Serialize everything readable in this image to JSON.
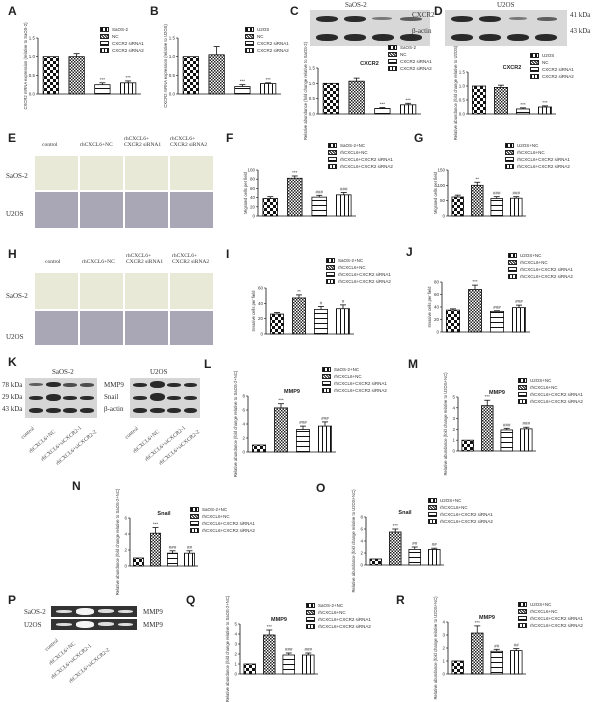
{
  "figure": {
    "panels": [
      "A",
      "B",
      "C",
      "D",
      "E",
      "F",
      "G",
      "H",
      "I",
      "J",
      "K",
      "L",
      "M",
      "N",
      "O",
      "P",
      "Q",
      "R"
    ]
  },
  "blots": {
    "C": {
      "title": "SaOS-2",
      "labels": [
        "CXCR2",
        "β-actin"
      ],
      "band_intensity": [
        [
          1,
          1,
          0.4,
          0.5
        ],
        [
          1,
          1,
          1,
          1
        ]
      ]
    },
    "D": {
      "title": "U2OS",
      "labels": [
        "41 kDa",
        "43 kDa"
      ],
      "band_intensity": [
        [
          1,
          1,
          0.4,
          0.5
        ],
        [
          1,
          1,
          1,
          1
        ]
      ]
    },
    "K": {
      "left": {
        "title": "SaOS-2",
        "labels": [
          "78 kDa",
          "29 kDa",
          "43 kDa"
        ]
      },
      "right": {
        "title": "U2OS",
        "labels": [
          "MMP9",
          "Snail",
          "β-actin"
        ]
      },
      "lanes": [
        "control",
        "rhCXCL6+NC",
        "rhCXCL6+siCXCR2-1",
        "rhCXCL6+siCXCR2-2"
      ]
    },
    "P": {
      "rows": [
        {
          "cell": "SaOS-2",
          "gene": "MMP9"
        },
        {
          "cell": "U2OS",
          "gene": "MMP9"
        }
      ],
      "lanes": [
        "control",
        "rhCXCL6+NC",
        "rhCXCL6+siCXCR2-1",
        "rhCXCL6+siCXCR2-2"
      ]
    }
  },
  "micrographs": {
    "E": {
      "columns": [
        "control",
        "rhCXCL6+NC",
        "rhCXCL6+\nCXCR2 siRNA1",
        "rhCXCL6+\nCXCR2 siRNA2"
      ],
      "rows": [
        "SaOS-2",
        "U2OS"
      ]
    },
    "H": {
      "columns": [
        "control",
        "rhCXCL6+NC",
        "rhCXCL6+\nCXCR2 siRNA1",
        "rhCXCL6+\nCXCR2 siRNA2"
      ],
      "rows": [
        "SaOS-2",
        "U2OS"
      ]
    }
  },
  "chart_data": [
    {
      "panel": "A",
      "type": "bar",
      "title": "",
      "ylabel": "CXCR2 mRNA expression (relative to SaOS-2)",
      "ylim": [
        0,
        1.5
      ],
      "yticks": [
        "0.0",
        "0.5",
        "1.0",
        "1.5"
      ],
      "categories": [
        "SaOS-2",
        "NC",
        "CXCR2 siRNA1",
        "CXCR2 siRNA2"
      ],
      "values": [
        1.0,
        1.0,
        0.25,
        0.3
      ],
      "errors": [
        0,
        0.08,
        0.05,
        0.05
      ],
      "sig": [
        "",
        "",
        "***",
        "***"
      ]
    },
    {
      "panel": "B",
      "type": "bar",
      "title": "",
      "ylabel": "CXCR2 mRNA expression (relative to U2OS)",
      "ylim": [
        0,
        1.5
      ],
      "yticks": [
        "0.0",
        "0.5",
        "1.0",
        "1.5"
      ],
      "categories": [
        "U2OS",
        "NC",
        "CXCR2 siRNA1",
        "CXCR2 siRNA2"
      ],
      "values": [
        1.0,
        1.05,
        0.2,
        0.28
      ],
      "errors": [
        0,
        0.22,
        0.05,
        0.02
      ],
      "sig": [
        "",
        "",
        "***",
        "***"
      ]
    },
    {
      "panel": "C",
      "type": "bar",
      "title": "CXCR2",
      "ylabel": "Relative abundance (fold change relative to SaOS-2)",
      "ylim": [
        0,
        1.5
      ],
      "yticks": [
        "0.0",
        "0.5",
        "1.0",
        "1.5"
      ],
      "categories": [
        "SaOS-2",
        "NC",
        "CXCR2 siRNA1",
        "CXCR2 siRNA2"
      ],
      "values": [
        1.0,
        1.07,
        0.18,
        0.3
      ],
      "errors": [
        0,
        0.1,
        0.03,
        0.05
      ],
      "sig": [
        "",
        "",
        "***",
        "***"
      ]
    },
    {
      "panel": "D",
      "type": "bar",
      "title": "CXCR2",
      "ylabel": "Relative abundance (fold change relative to U2OS)",
      "ylim": [
        0,
        1.5
      ],
      "yticks": [
        "0.0",
        "0.5",
        "1.0",
        "1.5"
      ],
      "categories": [
        "U2OS",
        "NC",
        "CXCR2 siRNA1",
        "CXCR2 siRNA2"
      ],
      "values": [
        1.0,
        0.95,
        0.18,
        0.25
      ],
      "errors": [
        0,
        0.08,
        0.04,
        0.04
      ],
      "sig": [
        "",
        "",
        "***",
        "***"
      ]
    },
    {
      "panel": "F",
      "type": "bar",
      "title": "",
      "ylabel": "Migrated cells per field",
      "ylim": [
        0,
        100
      ],
      "yticks": [
        "0",
        "20",
        "40",
        "60",
        "80",
        "100"
      ],
      "categories": [
        "SaOS-2+NC",
        "rhCXCL6+NC",
        "rhCXCL6+CXCR2 siRNA1",
        "rhCXCL6+CXCR2 siRNA2"
      ],
      "values": [
        38,
        82,
        41,
        46
      ],
      "errors": [
        4,
        5,
        4,
        5
      ],
      "sig": [
        "",
        "***",
        "###",
        "###"
      ]
    },
    {
      "panel": "G",
      "type": "bar",
      "title": "",
      "ylabel": "Migrated cells per field",
      "ylim": [
        0,
        150
      ],
      "yticks": [
        "0",
        "50",
        "100",
        "150"
      ],
      "categories": [
        "U2OS+NC",
        "rhCXCL6+NC",
        "rhCXCL6+CXCR2 siRNA1",
        "rhCXCL6+CXCR2 siRNA2"
      ],
      "values": [
        62,
        100,
        57,
        58
      ],
      "errors": [
        6,
        10,
        6,
        5
      ],
      "sig": [
        "",
        "**",
        "###",
        "###"
      ]
    },
    {
      "panel": "I",
      "type": "bar",
      "title": "",
      "ylabel": "Invasive cells per field",
      "ylim": [
        0,
        60
      ],
      "yticks": [
        "0",
        "20",
        "40",
        "60"
      ],
      "categories": [
        "SaOS-2+NC",
        "rhCXCL6+NC",
        "rhCXCL6+CXCR2 siRNA1",
        "rhCXCL6+CXCR2 siRNA2"
      ],
      "values": [
        26,
        47,
        32,
        33
      ],
      "errors": [
        2,
        4,
        4,
        5
      ],
      "sig": [
        "",
        "**",
        "#",
        "#"
      ]
    },
    {
      "panel": "J",
      "type": "bar",
      "title": "",
      "ylabel": "Invasive cells per field",
      "ylim": [
        0,
        80
      ],
      "yticks": [
        "0",
        "20",
        "40",
        "60",
        "80"
      ],
      "categories": [
        "U2OS+NC",
        "rhCXCL6+NC",
        "rhCXCL6+CXCR2 siRNA1",
        "rhCXCL6+CXCR2 siRNA2"
      ],
      "values": [
        35,
        68,
        33,
        39
      ],
      "errors": [
        2,
        7,
        1,
        4
      ],
      "sig": [
        "",
        "***",
        "###",
        "###"
      ]
    },
    {
      "panel": "L",
      "type": "bar",
      "title": "MMP9",
      "ylabel": "Relative abundance (fold change relative to SaOS-2+NC)",
      "ylim": [
        0,
        8
      ],
      "yticks": [
        "0",
        "2",
        "4",
        "6",
        "8"
      ],
      "categories": [
        "SaOS-2+NC",
        "rhCXCL6+NC",
        "rhCXCL6+CXCR2 siRNA1",
        "rhCXCL6+CXCR2 siRNA2"
      ],
      "values": [
        1.0,
        6.3,
        3.2,
        3.7
      ],
      "errors": [
        0,
        0.6,
        0.5,
        0.6
      ],
      "sig": [
        "",
        "***",
        "###",
        "###"
      ]
    },
    {
      "panel": "M",
      "type": "bar",
      "title": "MMP9",
      "ylabel": "Relative abundance (fold change relative to U2OS+NC)",
      "ylim": [
        0,
        5
      ],
      "yticks": [
        "0",
        "1",
        "2",
        "3",
        "4",
        "5"
      ],
      "categories": [
        "U2OS+NC",
        "rhCXCL6+NC",
        "rhCXCL6+CXCR2 siRNA1",
        "rhCXCL6+CXCR2 siRNA2"
      ],
      "values": [
        1.0,
        4.2,
        1.95,
        2.05
      ],
      "errors": [
        0,
        0.5,
        0.15,
        0.15
      ],
      "sig": [
        "",
        "***",
        "###",
        "###"
      ]
    },
    {
      "panel": "N",
      "type": "bar",
      "title": "Snail",
      "ylabel": "Relative abundance (fold change relative to SaOS-2+NC)",
      "ylim": [
        0,
        6
      ],
      "yticks": [
        "0",
        "2",
        "4",
        "6"
      ],
      "categories": [
        "SaOS-2+NC",
        "rhCXCL6+NC",
        "rhCXCL6+CXCR2 siRNA1",
        "rhCXCL6+CXCR2 siRNA2"
      ],
      "values": [
        1.0,
        4.1,
        1.6,
        1.6
      ],
      "errors": [
        0,
        0.7,
        0.3,
        0.3
      ],
      "sig": [
        "",
        "***",
        "###",
        "##"
      ]
    },
    {
      "panel": "O",
      "type": "bar",
      "title": "Snail",
      "ylabel": "Relative abundance (fold change relative to U2OS+NC)",
      "ylim": [
        0,
        8
      ],
      "yticks": [
        "0",
        "2",
        "4",
        "6",
        "8"
      ],
      "categories": [
        "U2OS+NC",
        "rhCXCL6+NC",
        "rhCXCL6+CXCR2 siRNA1",
        "rhCXCL6+CXCR2 siRNA2"
      ],
      "values": [
        1.0,
        5.5,
        2.6,
        2.6
      ],
      "errors": [
        0,
        0.5,
        0.4,
        0.2
      ],
      "sig": [
        "",
        "***",
        "##",
        "##"
      ]
    },
    {
      "panel": "Q",
      "type": "bar",
      "title": "MMP9",
      "ylabel": "Relative abundance (fold change relative to SaOS-2+NC)",
      "ylim": [
        0,
        5
      ],
      "yticks": [
        "0",
        "1",
        "2",
        "3",
        "4",
        "5"
      ],
      "categories": [
        "SaOS-2+NC",
        "rhCXCL6+NC",
        "rhCXCL6+CXCR2 siRNA1",
        "rhCXCL6+CXCR2 siRNA2"
      ],
      "values": [
        1.0,
        3.9,
        1.9,
        1.9
      ],
      "errors": [
        0,
        0.5,
        0.2,
        0.2
      ],
      "sig": [
        "",
        "***",
        "###",
        "###"
      ]
    },
    {
      "panel": "R",
      "type": "bar",
      "title": "MMP9",
      "ylabel": "Relative abundance (fold change relative to U2OS+NC)",
      "ylim": [
        0,
        4
      ],
      "yticks": [
        "0",
        "1",
        "2",
        "3",
        "4"
      ],
      "categories": [
        "U2OS+NC",
        "rhCXCL6+NC",
        "rhCXCL6+CXCR2 siRNA1",
        "rhCXCL6+CXCR2 siRNA2"
      ],
      "values": [
        1.0,
        3.15,
        1.75,
        1.8
      ],
      "errors": [
        0,
        0.55,
        0.15,
        0.15
      ],
      "sig": [
        "",
        "***",
        "##",
        "##"
      ]
    }
  ],
  "style": {
    "bar_edge": "#111111",
    "bar_fill": "#ffffff",
    "pattern_dark": "#111111"
  }
}
